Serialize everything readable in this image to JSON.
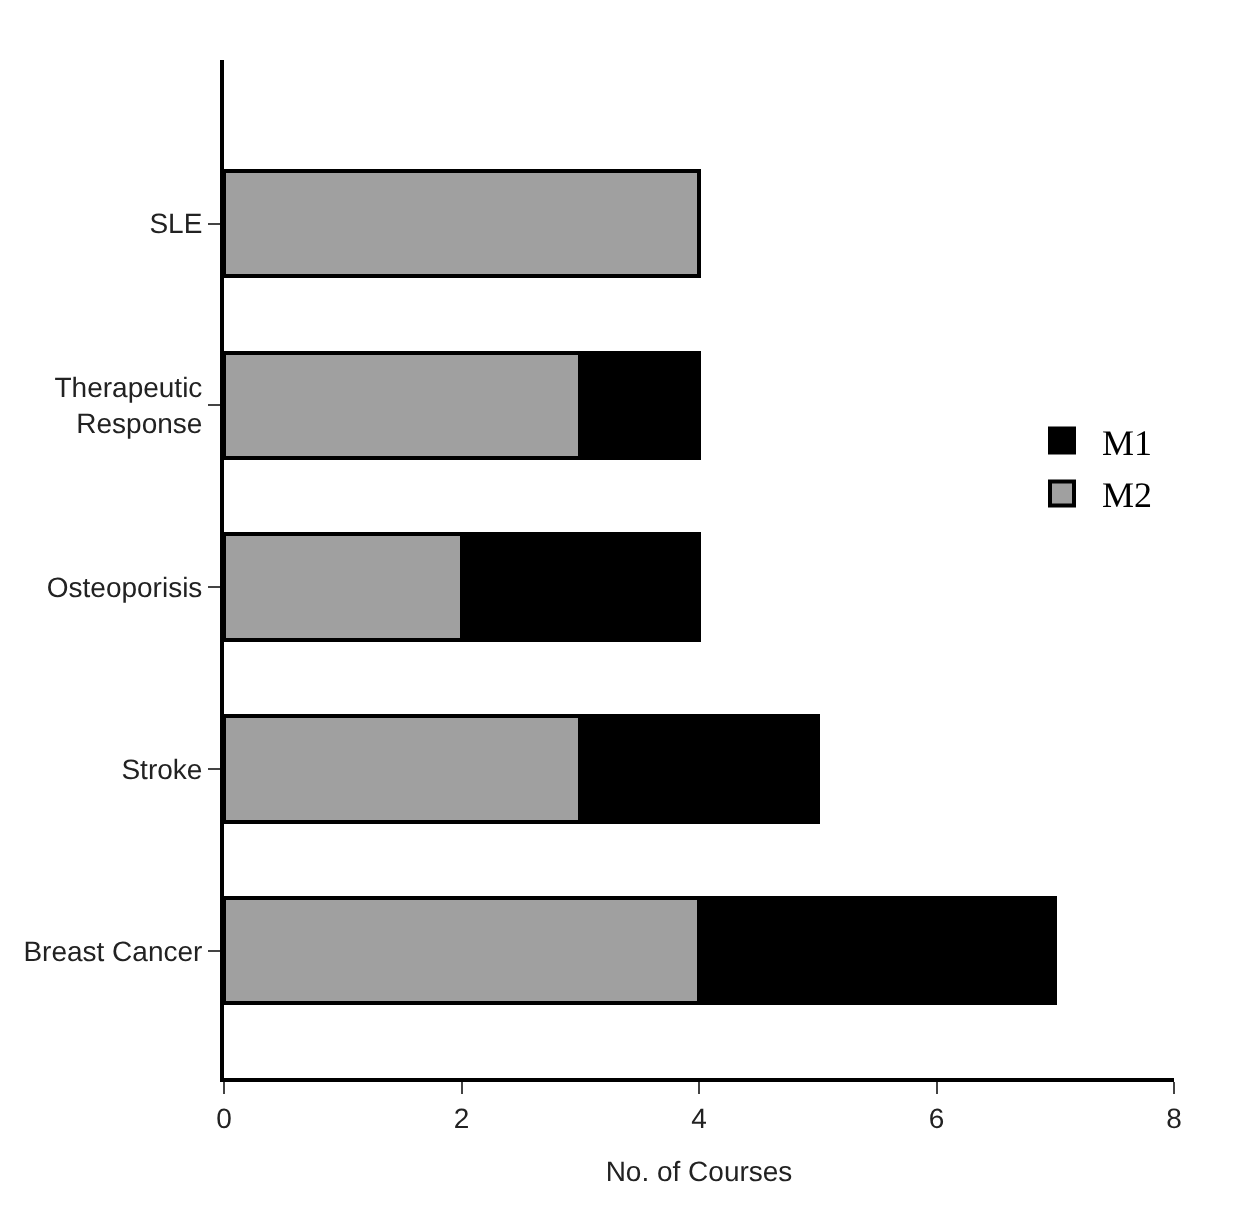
{
  "chart_data": {
    "type": "bar",
    "orientation": "horizontal",
    "stacked": true,
    "categories": [
      "SLE",
      "Therapeutic Response",
      "Osteoporisis",
      "Stroke",
      "Breast Cancer"
    ],
    "series": [
      {
        "name": "M2",
        "color": "#a0a0a0",
        "values": [
          4,
          3,
          2,
          3,
          4
        ]
      },
      {
        "name": "M1",
        "color": "#000000",
        "values": [
          0,
          1,
          2,
          2,
          3
        ]
      }
    ],
    "xlabel": "No. of Courses",
    "xlim": [
      0,
      8
    ],
    "xticks": [
      0,
      2,
      4,
      6,
      8
    ],
    "legend": "right"
  }
}
